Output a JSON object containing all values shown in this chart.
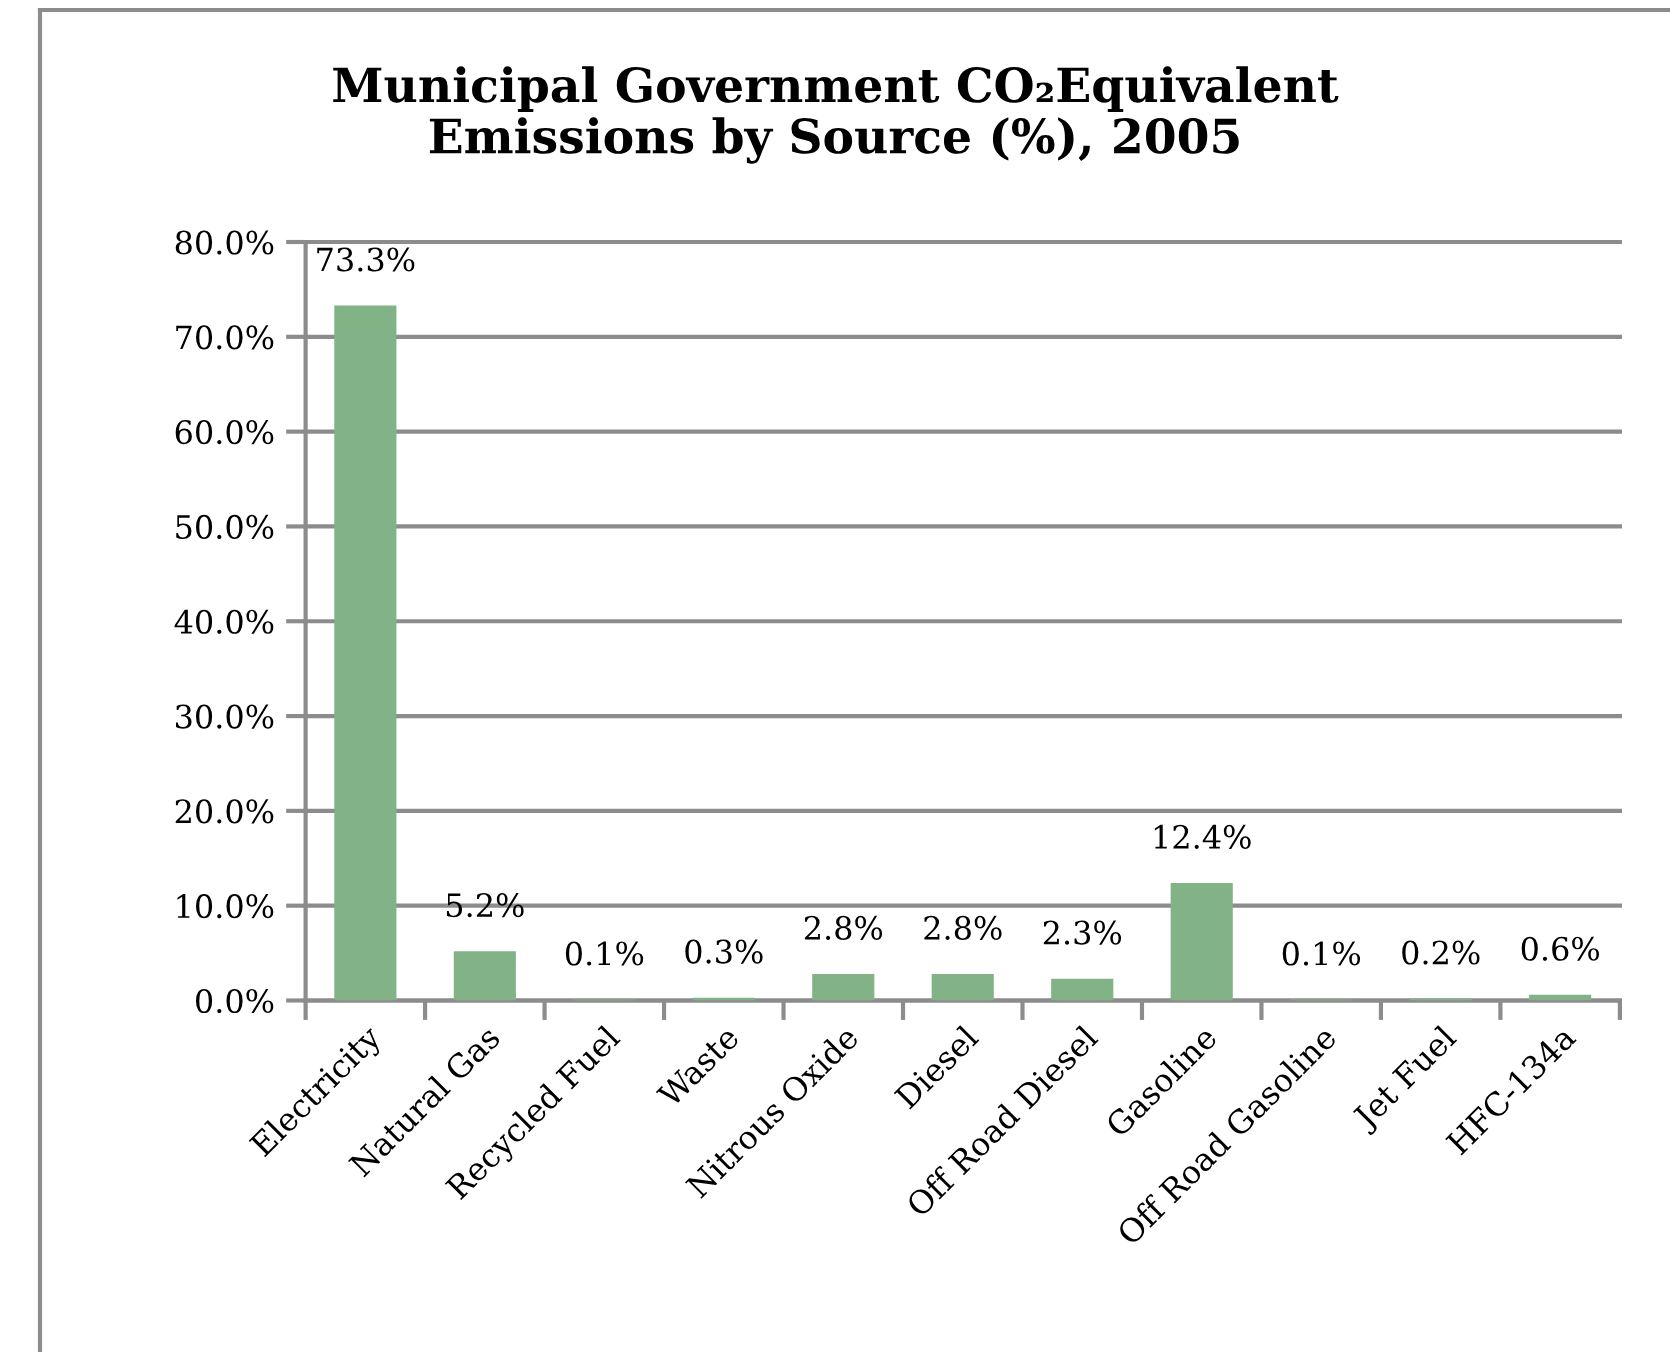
{
  "chart_data": {
    "type": "bar",
    "title": "Municipal Government CO₂Equivalent\nEmissions by Source (%), 2005",
    "categories": [
      "Electricity",
      "Natural Gas",
      "Recycled Fuel",
      "Waste",
      "Nitrous Oxide",
      "Diesel",
      "Off Road Diesel",
      "Gasoline",
      "Off Road Gasoline",
      "Jet Fuel",
      "HFC-134a"
    ],
    "values": [
      73.3,
      5.2,
      0.1,
      0.3,
      2.8,
      2.8,
      2.3,
      12.4,
      0.1,
      0.2,
      0.6
    ],
    "value_labels": [
      "73.3%",
      "5.2%",
      "0.1%",
      "0.3%",
      "2.8%",
      "2.8%",
      "2.3%",
      "12.4%",
      "0.1%",
      "0.2%",
      "0.6%"
    ],
    "color": "#82b387",
    "ylim": [
      0,
      80
    ],
    "yticks": [
      {
        "value": 0,
        "label": "0.0%"
      },
      {
        "value": 10,
        "label": "10.0%"
      },
      {
        "value": 20,
        "label": "20.0%"
      },
      {
        "value": 30,
        "label": "30.0%"
      },
      {
        "value": 40,
        "label": "40.0%"
      },
      {
        "value": 50,
        "label": "50.0%"
      },
      {
        "value": 60,
        "label": "60.0%"
      },
      {
        "value": 70,
        "label": "70.0%"
      },
      {
        "value": 80,
        "label": "80.0%"
      }
    ],
    "grid": "y"
  }
}
